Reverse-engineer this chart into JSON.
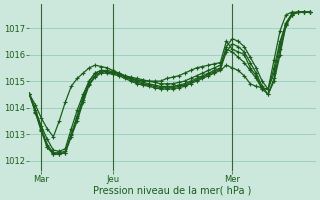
{
  "xlabel": "Pression niveau de la mer( hPa )",
  "bg_color": "#cce8dd",
  "grid_color": "#99ccbb",
  "line_color": "#1a5c1a",
  "vline_color": "#336633",
  "xtick_labels": [
    "Mar",
    "Jeu",
    "Mer"
  ],
  "ytick_values": [
    1012,
    1013,
    1014,
    1015,
    1016,
    1017
  ],
  "ylim": [
    1011.6,
    1017.9
  ],
  "xlim": [
    0,
    48
  ],
  "xtick_positions": [
    2,
    14,
    34
  ],
  "series": [
    [
      1014.5,
      1014.1,
      1013.6,
      1013.2,
      1012.9,
      1013.5,
      1014.2,
      1014.8,
      1015.1,
      1015.3,
      1015.5,
      1015.6,
      1015.55,
      1015.5,
      1015.4,
      1015.3,
      1015.2,
      1015.1,
      1015.05,
      1015.0,
      1015.0,
      1015.0,
      1015.0,
      1015.1,
      1015.15,
      1015.2,
      1015.3,
      1015.4,
      1015.5,
      1015.55,
      1015.6,
      1015.65,
      1015.7,
      1016.5,
      1016.2,
      1016.1,
      1016.0,
      1015.5,
      1015.2,
      1014.7,
      1014.7,
      1015.8,
      1016.9,
      1017.5,
      1017.6,
      1017.6,
      1017.6,
      1017.6
    ],
    [
      1014.5,
      1013.9,
      1013.3,
      1012.8,
      1012.4,
      1012.35,
      1012.45,
      1013.2,
      1013.9,
      1014.5,
      1015.0,
      1015.3,
      1015.4,
      1015.35,
      1015.3,
      1015.25,
      1015.2,
      1015.15,
      1015.1,
      1015.05,
      1015.0,
      1014.95,
      1014.9,
      1014.9,
      1014.9,
      1014.95,
      1015.0,
      1015.1,
      1015.2,
      1015.3,
      1015.4,
      1015.5,
      1015.6,
      1016.2,
      1016.1,
      1015.9,
      1015.7,
      1015.4,
      1015.1,
      1014.7,
      1014.5,
      1015.0,
      1016.0,
      1017.1,
      1017.5,
      1017.6,
      1017.6,
      1017.6
    ],
    [
      1014.5,
      1013.9,
      1013.2,
      1012.6,
      1012.3,
      1012.3,
      1012.35,
      1013.0,
      1013.7,
      1014.4,
      1015.0,
      1015.3,
      1015.4,
      1015.4,
      1015.35,
      1015.3,
      1015.2,
      1015.1,
      1015.0,
      1014.95,
      1014.9,
      1014.85,
      1014.8,
      1014.8,
      1014.8,
      1014.85,
      1014.9,
      1015.0,
      1015.1,
      1015.2,
      1015.3,
      1015.4,
      1015.5,
      1016.3,
      1016.6,
      1016.5,
      1016.3,
      1015.9,
      1015.5,
      1015.0,
      1014.7,
      1015.3,
      1016.4,
      1017.2,
      1017.55,
      1017.6,
      1017.6,
      1017.6
    ],
    [
      1014.5,
      1013.85,
      1013.15,
      1012.5,
      1012.25,
      1012.25,
      1012.3,
      1012.95,
      1013.6,
      1014.3,
      1014.9,
      1015.2,
      1015.35,
      1015.35,
      1015.3,
      1015.25,
      1015.15,
      1015.05,
      1014.95,
      1014.9,
      1014.85,
      1014.8,
      1014.75,
      1014.75,
      1014.75,
      1014.8,
      1014.85,
      1014.95,
      1015.05,
      1015.15,
      1015.25,
      1015.35,
      1015.45,
      1016.1,
      1016.4,
      1016.3,
      1016.1,
      1015.7,
      1015.3,
      1014.8,
      1014.5,
      1015.1,
      1016.2,
      1017.1,
      1017.5,
      1017.6,
      1017.6,
      1017.6
    ],
    [
      1014.5,
      1013.8,
      1013.1,
      1012.5,
      1012.25,
      1012.25,
      1012.3,
      1012.9,
      1013.5,
      1014.2,
      1014.85,
      1015.15,
      1015.3,
      1015.3,
      1015.25,
      1015.2,
      1015.1,
      1015.0,
      1014.9,
      1014.85,
      1014.8,
      1014.75,
      1014.7,
      1014.7,
      1014.7,
      1014.75,
      1014.8,
      1014.9,
      1015.0,
      1015.1,
      1015.2,
      1015.3,
      1015.4,
      1015.6,
      1015.5,
      1015.4,
      1015.2,
      1014.9,
      1014.8,
      1014.75,
      1014.7,
      1015.5,
      1016.5,
      1017.15,
      1017.5,
      1017.6,
      1017.6,
      1017.6
    ]
  ],
  "xlabel_fontsize": 7,
  "tick_fontsize": 6
}
